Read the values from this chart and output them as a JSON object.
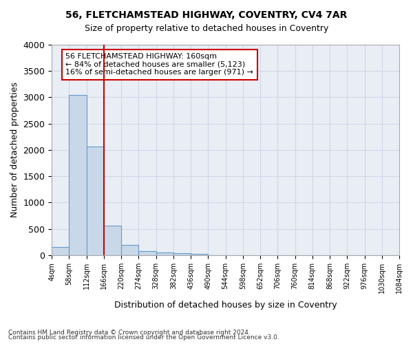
{
  "title1": "56, FLETCHAMSTEAD HIGHWAY, COVENTRY, CV4 7AR",
  "title2": "Size of property relative to detached houses in Coventry",
  "xlabel": "Distribution of detached houses by size in Coventry",
  "ylabel": "Number of detached properties",
  "footnote1": "Contains HM Land Registry data © Crown copyright and database right 2024.",
  "footnote2": "Contains public sector information licensed under the Open Government Licence v3.0.",
  "bin_labels": [
    "4sqm",
    "58sqm",
    "112sqm",
    "166sqm",
    "220sqm",
    "274sqm",
    "328sqm",
    "382sqm",
    "436sqm",
    "490sqm",
    "544sqm",
    "598sqm",
    "652sqm",
    "706sqm",
    "760sqm",
    "814sqm",
    "868sqm",
    "922sqm",
    "976sqm",
    "1030sqm",
    "1084sqm"
  ],
  "bar_values": [
    150,
    3050,
    2060,
    560,
    200,
    80,
    55,
    40,
    20,
    0,
    0,
    0,
    0,
    0,
    0,
    0,
    0,
    0,
    0,
    0
  ],
  "bar_color": "#c8d8e8",
  "bar_edge_color": "#6699cc",
  "grid_color": "#d0d8e8",
  "bg_color": "#e8eef4",
  "red_line_x": 3,
  "annotation_text": "56 FLETCHAMSTEAD HIGHWAY: 160sqm\n← 84% of detached houses are smaller (5,123)\n16% of semi-detached houses are larger (971) →",
  "annotation_box_color": "#ffffff",
  "annotation_border_color": "#cc0000",
  "ylim": [
    0,
    4000
  ],
  "yticks": [
    0,
    500,
    1000,
    1500,
    2000,
    2500,
    3000,
    3500,
    4000
  ]
}
